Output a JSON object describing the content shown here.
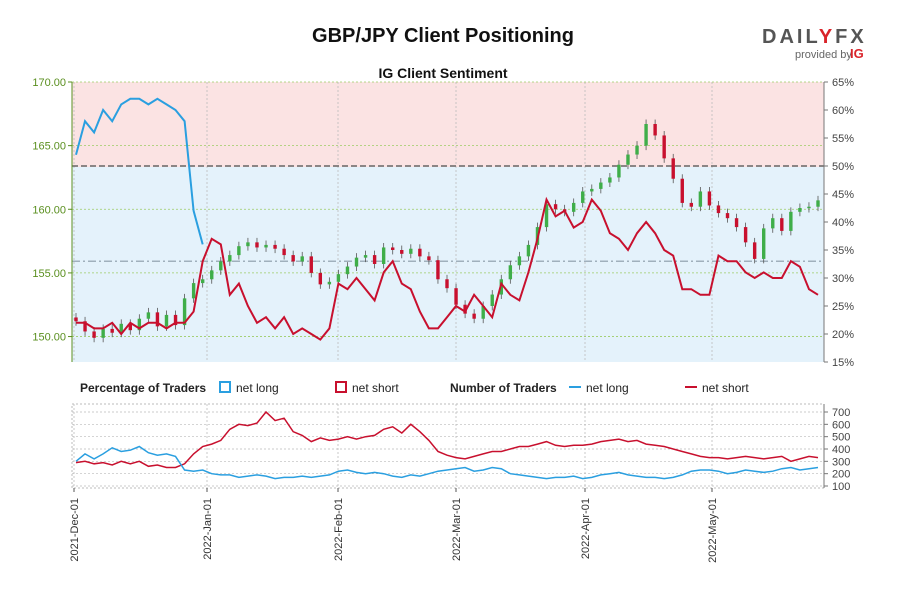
{
  "title": "GBP/JPY Client Positioning",
  "brand": {
    "name_left": "DAIL",
    "name_y": "Y",
    "name_right": "FX",
    "provided_by": "provided by",
    "ig": "IG"
  },
  "colors": {
    "price_axis": "#5a8f1f",
    "net_long": "#2a9fe0",
    "net_short": "#c8102e",
    "bull_candle": "#3fae49",
    "bear_candle": "#c8102e",
    "short_zone": "#fbe3e3",
    "long_zone": "#e4f2fb",
    "grid": "#bbbbbb"
  },
  "legend": {
    "pct_title": "Percentage of Traders",
    "num_title": "Number of Traders",
    "net_long": "net long",
    "net_short": "net short"
  },
  "chart_data": [
    {
      "type": "candlestick+line",
      "title": "IG Client Sentiment",
      "y_left_ticks": [
        "150.00",
        "155.00",
        "160.00",
        "165.00",
        "170.00"
      ],
      "y_left_range": [
        148.0,
        170.0
      ],
      "y_right_ticks": [
        "15%",
        "20%",
        "25%",
        "30%",
        "35%",
        "40%",
        "45%",
        "50%",
        "55%",
        "60%",
        "65%"
      ],
      "y_right_range": [
        15,
        65
      ],
      "x_ticks": [
        "2021-Dec-01",
        "2022-Jan-01",
        "2022-Feb-01",
        "2022-Mar-01",
        "2022-Apr-01",
        "2022-May-01"
      ],
      "ref_lines_pct": [
        50,
        33
      ],
      "price_close": [
        151.2,
        150.4,
        149.9,
        150.6,
        150.3,
        151.0,
        150.5,
        151.4,
        151.9,
        150.8,
        151.7,
        150.9,
        153.0,
        154.2,
        154.5,
        155.2,
        155.9,
        156.4,
        157.1,
        157.4,
        157.0,
        157.2,
        156.9,
        156.4,
        155.9,
        156.3,
        155.0,
        154.1,
        154.3,
        154.9,
        155.5,
        156.2,
        156.4,
        155.7,
        157.0,
        156.8,
        156.5,
        156.9,
        156.3,
        156.0,
        154.5,
        153.8,
        152.5,
        151.8,
        151.4,
        152.4,
        153.3,
        154.5,
        155.6,
        156.3,
        157.2,
        158.6,
        160.4,
        160.0,
        159.8,
        160.5,
        161.4,
        161.6,
        162.1,
        162.5,
        163.5,
        164.3,
        165.0,
        166.7,
        165.8,
        164.0,
        162.4,
        160.5,
        160.2,
        161.4,
        160.3,
        159.7,
        159.3,
        158.6,
        157.4,
        156.1,
        158.5,
        159.3,
        158.3,
        159.8,
        160.1,
        160.2,
        160.7
      ]
    },
    {
      "type": "line",
      "title": "",
      "y_right_ticks": [
        "100",
        "200",
        "300",
        "400",
        "500",
        "600",
        "700"
      ],
      "y_right_range": [
        100,
        700
      ]
    }
  ]
}
